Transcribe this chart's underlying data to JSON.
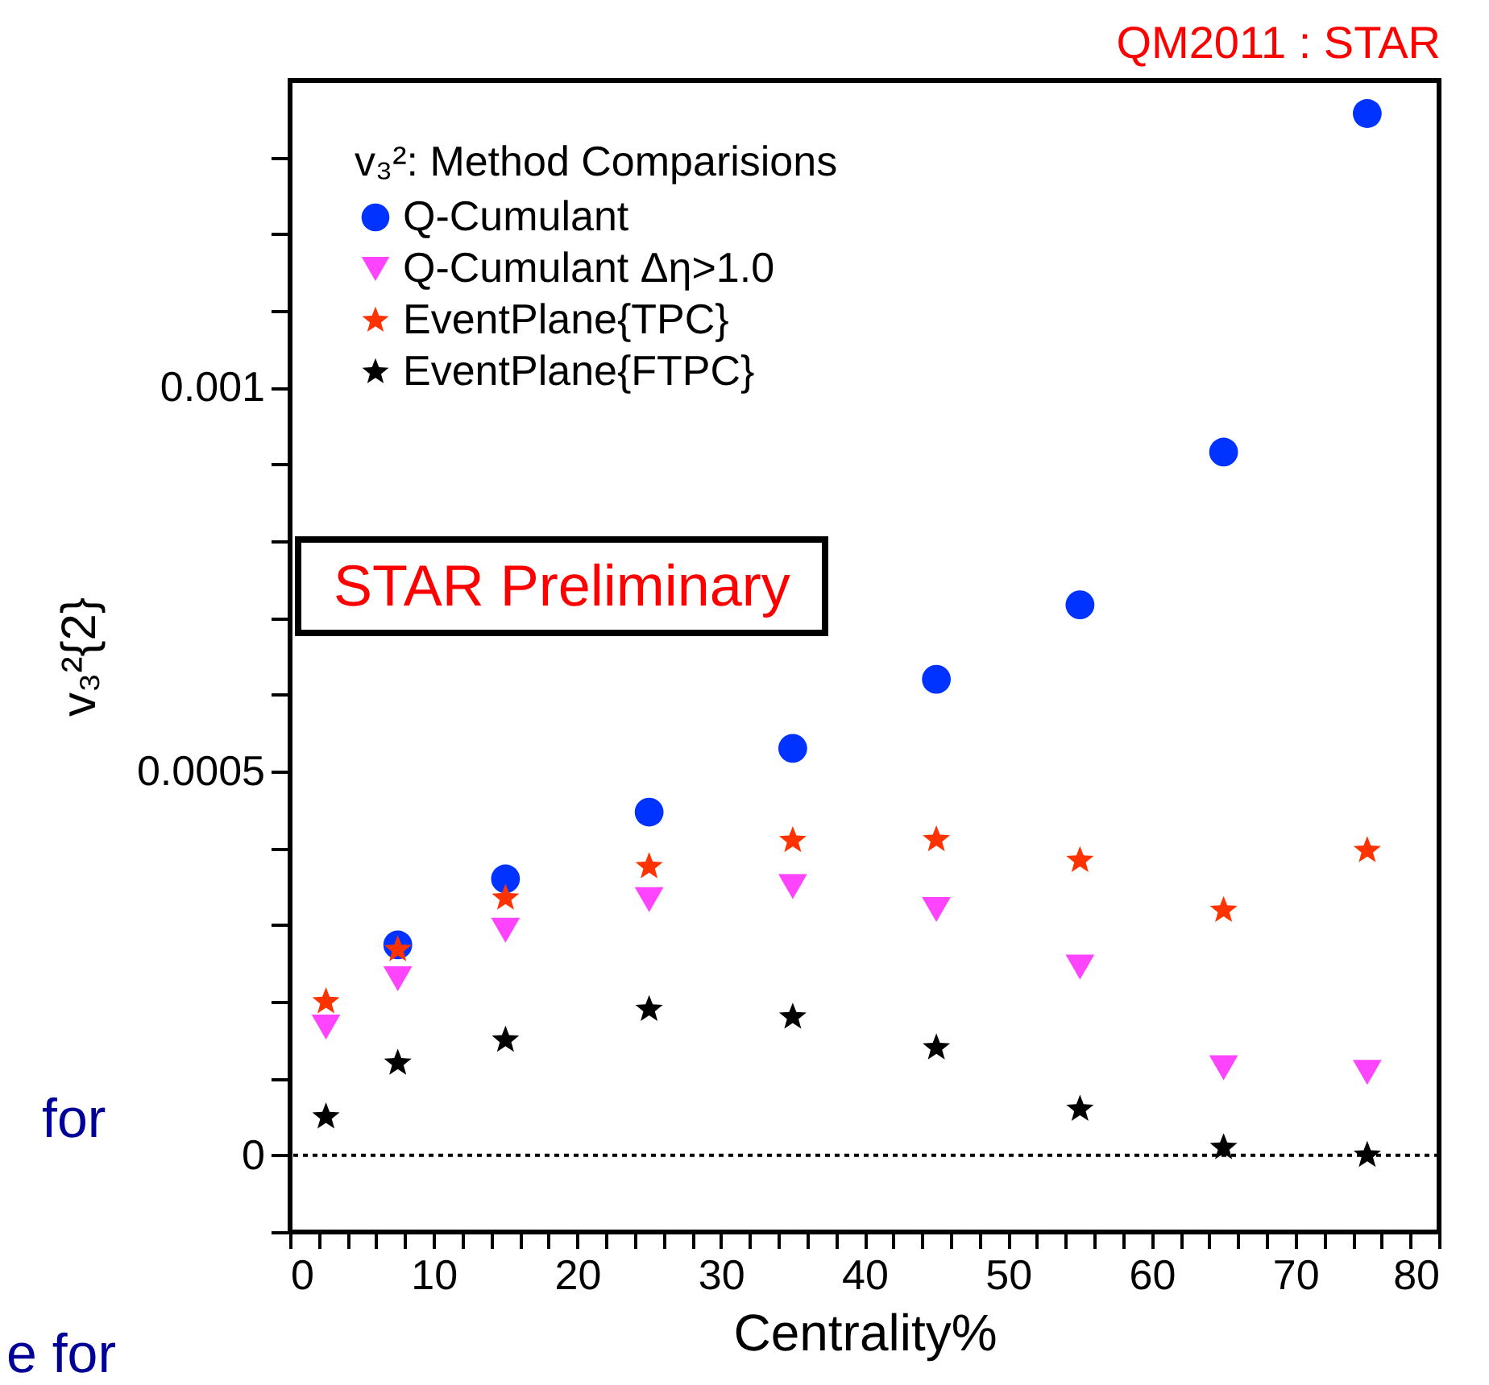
{
  "chart_data": {
    "type": "scatter",
    "title": "QM2011 : STAR",
    "xlabel": "Centrality%",
    "ylabel": "v₃²{2}",
    "legend_title": "v₃²: Method Comparisions",
    "legend": "top left",
    "x": [
      2.5,
      7.5,
      15,
      25,
      35,
      45,
      55,
      65,
      75
    ],
    "series": [
      {
        "name": "Q-Cumulant",
        "color": "#0033ff",
        "marker": "circle",
        "values": [
          null,
          0.000274,
          0.00036,
          0.000447,
          0.00053,
          0.00062,
          0.000717,
          0.000916,
          0.001357
        ]
      },
      {
        "name": "Q-Cumulant Δη>1.0",
        "color": "#ff44ff",
        "marker": "triangle",
        "values": [
          0.000167,
          0.00023,
          0.000293,
          0.000333,
          0.00035,
          0.00032,
          0.000245,
          0.000114,
          0.000108
        ]
      },
      {
        "name": "EventPlane{TPC}",
        "color": "#ff3300",
        "marker": "star",
        "values": [
          0.0002,
          0.000268,
          0.000335,
          0.000376,
          0.00041,
          0.000411,
          0.000384,
          0.000319,
          0.000397
        ]
      },
      {
        "name": "EventPlane{FTPC}",
        "color": "#000000",
        "marker": "star",
        "values": [
          5e-05,
          0.00012,
          0.00015,
          0.00019,
          0.00018,
          0.00014,
          6e-05,
          1e-05,
          0
        ]
      }
    ],
    "xlim": [
      0,
      80
    ],
    "ylim": [
      -0.0001,
      0.0014
    ],
    "xticks": [
      0,
      {
        "value": 2,
        "label": null
      },
      {
        "value": 4,
        "label": null
      },
      {
        "value": 6,
        "label": null
      },
      {
        "value": 8,
        "label": null
      },
      10,
      {
        "value": 12,
        "label": null
      },
      {
        "value": 14,
        "label": null
      },
      {
        "value": 16,
        "label": null
      },
      {
        "value": 18,
        "label": null
      },
      20,
      {
        "value": 22,
        "label": null
      },
      {
        "value": 24,
        "label": null
      },
      {
        "value": 26,
        "label": null
      },
      {
        "value": 28,
        "label": null
      },
      30,
      {
        "value": 32,
        "label": null
      },
      {
        "value": 34,
        "label": null
      },
      {
        "value": 36,
        "label": null
      },
      {
        "value": 38,
        "label": null
      },
      40,
      {
        "value": 42,
        "label": null
      },
      {
        "value": 44,
        "label": null
      },
      {
        "value": 46,
        "label": null
      },
      {
        "value": 48,
        "label": null
      },
      50,
      {
        "value": 52,
        "label": null
      },
      {
        "value": 54,
        "label": null
      },
      {
        "value": 56,
        "label": null
      },
      {
        "value": 58,
        "label": null
      },
      60,
      {
        "value": 62,
        "label": null
      },
      {
        "value": 64,
        "label": null
      },
      {
        "value": 66,
        "label": null
      },
      {
        "value": 68,
        "label": null
      },
      70,
      {
        "value": 72,
        "label": null
      },
      {
        "value": 74,
        "label": null
      },
      {
        "value": 76,
        "label": null
      },
      {
        "value": 78,
        "label": null
      },
      80
    ],
    "yticks": [
      {
        "value": -0.0001,
        "label": null
      },
      0,
      {
        "value": 0.0001,
        "label": null
      },
      {
        "value": 0.0002,
        "label": null
      },
      {
        "value": 0.0003,
        "label": null
      },
      {
        "value": 0.0004,
        "label": null
      },
      0.0005,
      {
        "value": 0.0006,
        "label": null
      },
      {
        "value": 0.0007,
        "label": null
      },
      {
        "value": 0.0008,
        "label": null
      },
      {
        "value": 0.0009,
        "label": null
      },
      0.001,
      {
        "value": 0.0011,
        "label": null
      },
      {
        "value": 0.0012,
        "label": null
      },
      {
        "value": 0.0013,
        "label": null
      }
    ],
    "grid": false,
    "ref_lines": [
      {
        "axis": "y",
        "value": 0,
        "line_style": "dotted",
        "color": "#000000"
      }
    ],
    "annotations": [
      "STAR Preliminary",
      "for",
      "e for"
    ]
  }
}
